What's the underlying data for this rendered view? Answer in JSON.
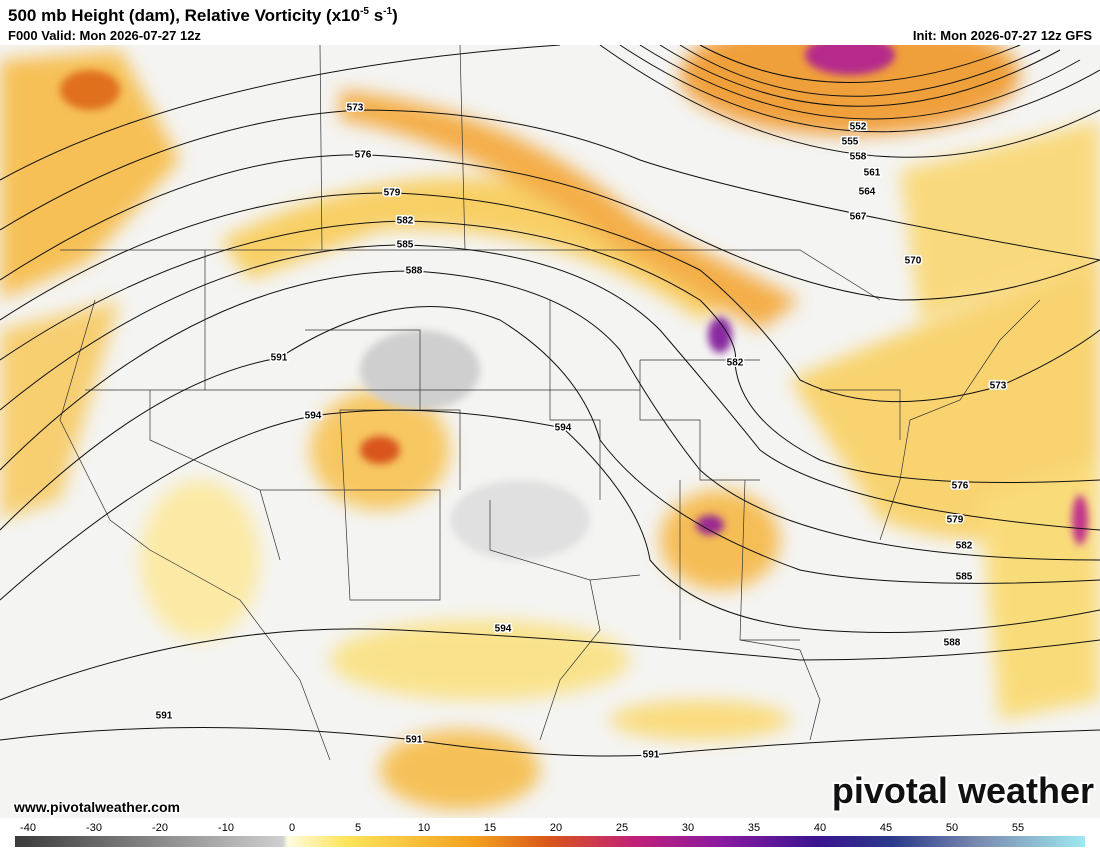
{
  "header": {
    "title_parts": [
      "500 mb Height (dam), Relative Vorticity (x10",
      "-5",
      " s",
      "-1",
      ")"
    ],
    "valid": "F000 Valid: Mon 2026-07-27 12z",
    "init": "Init: Mon 2026-07-27 12z GFS"
  },
  "contour_labels": [
    573,
    576,
    579,
    582,
    585,
    588,
    591,
    594,
    594,
    582,
    552,
    555,
    558,
    561,
    564,
    567,
    570,
    573,
    576,
    579,
    582,
    585,
    588,
    594,
    591,
    591,
    591
  ],
  "colorbar": {
    "ticks": [
      -40,
      -30,
      -20,
      -10,
      0,
      5,
      10,
      15,
      20,
      25,
      30,
      35,
      40,
      45,
      50,
      55
    ]
  },
  "footer": {
    "website": "www.pivotalweather.com",
    "logo": "pivotal weather"
  }
}
